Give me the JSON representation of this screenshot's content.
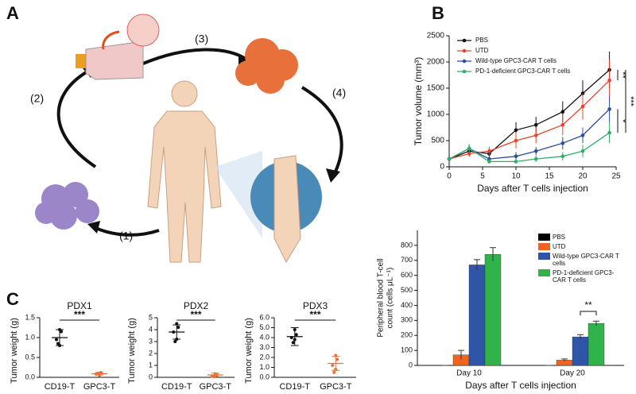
{
  "panel_labels": [
    "A",
    "B",
    "C"
  ],
  "diagram_steps": [
    "(1)",
    "(2)",
    "(3)",
    "(4)"
  ],
  "chart_data": [
    {
      "type": "line",
      "xlabel": "Days after T cells injection",
      "ylabel": "Tumor volume (mm³)",
      "x": [
        0,
        3,
        6,
        10,
        13,
        17,
        20,
        24
      ],
      "xlim": [
        0,
        25
      ],
      "xticks": [
        0,
        5,
        10,
        15,
        20,
        25
      ],
      "ylim": [
        0,
        2500
      ],
      "yticks": [
        0,
        500,
        1000,
        1500,
        2000,
        2500
      ],
      "series": [
        {
          "name": "PBS",
          "color": "#111111",
          "values": [
            150,
            300,
            250,
            700,
            800,
            1050,
            1400,
            1850
          ],
          "errors": [
            30,
            60,
            60,
            150,
            150,
            200,
            250,
            350
          ]
        },
        {
          "name": "UTD",
          "color": "#e8432e",
          "values": [
            150,
            250,
            300,
            500,
            600,
            800,
            1150,
            1650
          ],
          "errors": [
            30,
            60,
            80,
            150,
            150,
            200,
            250,
            400
          ]
        },
        {
          "name": "Wild-type GPC3-CAR T cells",
          "color": "#2b4ea0",
          "values": [
            150,
            350,
            150,
            200,
            300,
            450,
            600,
            1100
          ],
          "errors": [
            30,
            80,
            50,
            80,
            80,
            120,
            150,
            250
          ]
        },
        {
          "name": "PD-1-deficient GPC3-CAR T cells",
          "color": "#2fae6a",
          "values": [
            150,
            350,
            100,
            100,
            150,
            200,
            300,
            650
          ],
          "errors": [
            30,
            80,
            40,
            40,
            60,
            80,
            120,
            200
          ]
        }
      ],
      "annotations": [
        "**",
        "***",
        "*"
      ]
    },
    {
      "type": "bar",
      "xlabel": "Days after T cells injection",
      "ylabel": [
        "Peripheral blood T-cell",
        "count (cells μL⁻¹)"
      ],
      "categories": [
        "Day 10",
        "Day 20"
      ],
      "ylim": [
        0,
        900
      ],
      "yticks": [
        0,
        100,
        200,
        300,
        400,
        500,
        600,
        700,
        800
      ],
      "series": [
        {
          "name": "PBS",
          "color": "#000000",
          "values": [
            0,
            0
          ],
          "errors": [
            0,
            0
          ]
        },
        {
          "name": "UTD",
          "color": "#f0641e",
          "values": [
            70,
            35
          ],
          "errors": [
            30,
            8
          ]
        },
        {
          "name": "Wild-type GPC3-CAR T cells",
          "color": "#2e55a8",
          "values": [
            670,
            190
          ],
          "errors": [
            35,
            15
          ]
        },
        {
          "name": "PD-1-deficient GPC3-CAR T cells",
          "color": "#2fb34a",
          "values": [
            740,
            280
          ],
          "errors": [
            45,
            15
          ]
        }
      ],
      "annotations": [
        "**"
      ]
    },
    {
      "type": "dot",
      "title": "PDX1",
      "ylabel": "Tumor weight (g)",
      "categories": [
        "CD19-T",
        "GPC3-T"
      ],
      "colors": [
        "#111111",
        "#e8743b"
      ],
      "ylim": [
        0,
        1.5
      ],
      "yticks": [
        {
          "value": 0,
          "label": "0.0"
        },
        0.5,
        {
          "value": 1,
          "label": "1.0"
        },
        1.5
      ],
      "points": [
        [
          1.2,
          1.15,
          0.95,
          0.8,
          0.85
        ],
        [
          0.1,
          0.12,
          0.08,
          0.05,
          0.1
        ]
      ],
      "means": [
        1.0,
        0.09
      ],
      "sd": [
        0.2,
        0.03
      ],
      "annotations": [
        "***"
      ]
    },
    {
      "type": "dot",
      "title": "PDX2",
      "ylabel": "Tumor weight (g)",
      "categories": [
        "CD19-T",
        "GPC3-T"
      ],
      "colors": [
        "#111111",
        "#e8743b"
      ],
      "ylim": [
        0,
        5
      ],
      "yticks": [
        0,
        1,
        2,
        3,
        4,
        5
      ],
      "points": [
        [
          4.5,
          4.2,
          3.8,
          3.2,
          3.0
        ],
        [
          0.3,
          0.2,
          0.1,
          0.15,
          0.05
        ]
      ],
      "means": [
        3.8,
        0.2
      ],
      "sd": [
        0.6,
        0.15
      ],
      "annotations": [
        "***"
      ]
    },
    {
      "type": "dot",
      "title": "PDX3",
      "ylabel": "Tumor weight (g)",
      "categories": [
        "CD19-T",
        "GPC3-T"
      ],
      "colors": [
        "#111111",
        "#e8743b"
      ],
      "ylim": [
        0,
        6
      ],
      "yticks": [
        {
          "value": 0,
          "label": "0.0"
        },
        {
          "value": 1,
          "label": "1.0"
        },
        {
          "value": 2,
          "label": "2.0"
        },
        {
          "value": 3,
          "label": "3.0"
        },
        {
          "value": 4,
          "label": "4.0"
        },
        {
          "value": 5,
          "label": "5.0"
        },
        {
          "value": 6,
          "label": "6.0"
        }
      ],
      "points": [
        [
          4.8,
          4.3,
          4.0,
          3.8,
          3.5
        ],
        [
          2.2,
          1.8,
          1.2,
          0.8,
          0.5
        ]
      ],
      "means": [
        4.1,
        1.4
      ],
      "sd": [
        0.9,
        0.7
      ],
      "annotations": [
        "***"
      ]
    }
  ]
}
